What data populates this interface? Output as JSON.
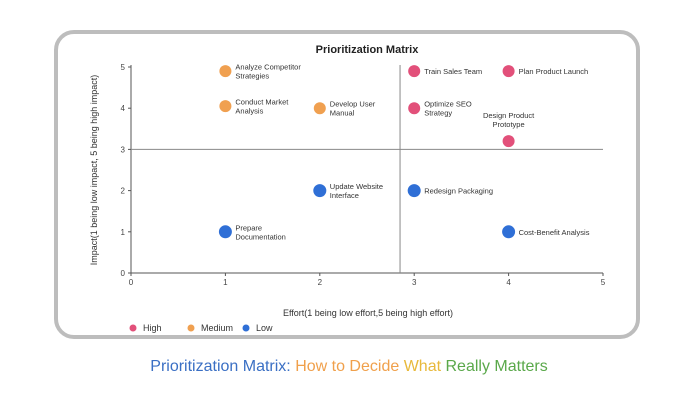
{
  "chart_data": {
    "type": "scatter",
    "title": "Prioritization Matrix",
    "xlabel": "Effort(1 being low effort,5 being high effort)",
    "ylabel": "Impact(1 being low impact, 5 being high impact)",
    "xlim": [
      0,
      5
    ],
    "ylim": [
      0,
      5
    ],
    "xticks": [
      "0",
      "1",
      "2",
      "3",
      "4",
      "5"
    ],
    "yticks": [
      "0",
      "1",
      "2",
      "3",
      "4",
      "5"
    ],
    "quadrant_lines": {
      "x": 2.85,
      "y": 3
    },
    "legend_position": "bottom-left",
    "series": [
      {
        "name": "High",
        "color": "#e2507a",
        "points": [
          {
            "x": 3,
            "y": 4.9,
            "label": "Train Sales Team"
          },
          {
            "x": 4,
            "y": 4.9,
            "label": "Plan Product Launch"
          },
          {
            "x": 3,
            "y": 4,
            "label": "Optimize SEO\nStrategy"
          },
          {
            "x": 4,
            "y": 3.2,
            "label": "Design Product\nPrototype",
            "label_position": "above"
          }
        ]
      },
      {
        "name": "Medium",
        "color": "#f0a050",
        "points": [
          {
            "x": 1,
            "y": 4.9,
            "label": "Analyze Competitor\nStrategies"
          },
          {
            "x": 1,
            "y": 4.05,
            "label": "Conduct Market\nAnalysis"
          },
          {
            "x": 2,
            "y": 4,
            "label": "Develop User\nManual"
          }
        ]
      },
      {
        "name": "Low",
        "color": "#2f6fd6",
        "points": [
          {
            "x": 2,
            "y": 2,
            "label": "Update Website\nInterface"
          },
          {
            "x": 3,
            "y": 2,
            "label": "Redesign Packaging"
          },
          {
            "x": 1,
            "y": 1,
            "label": "Prepare\nDocumentation"
          },
          {
            "x": 4,
            "y": 1,
            "label": "Cost-Benefit Analysis"
          }
        ]
      }
    ]
  },
  "caption": {
    "parts": [
      {
        "text": "Prioritization Matrix: ",
        "color": "#3a6fc4"
      },
      {
        "text": "How to Decide ",
        "color": "#f0a04b"
      },
      {
        "text": "What ",
        "color": "#e8b93b"
      },
      {
        "text": "Really ",
        "color": "#5aa84a"
      },
      {
        "text": "Matters",
        "color": "#5aa84a"
      }
    ]
  }
}
